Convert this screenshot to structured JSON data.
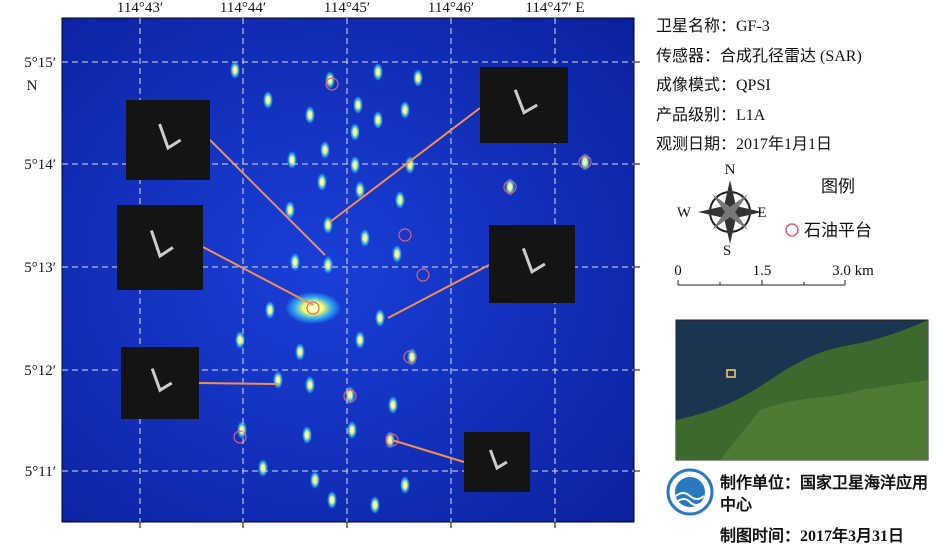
{
  "map": {
    "x_labels": [
      "114°43′",
      "114°44′",
      "114°45′",
      "114°46′",
      "114°47′ E"
    ],
    "y_labels": [
      "5°15′",
      "5°14′",
      "5°13′",
      "5°12′",
      "5°11′"
    ],
    "y_hemisphere": "N"
  },
  "info": [
    "卫星名称：GF-3",
    "传感器：合成孔径雷达 (SAR)",
    "成像模式：QPSI",
    "产品级别：L1A",
    "观测日期：2017年1月1日"
  ],
  "compass": {
    "n": "N",
    "s": "S",
    "e": "E",
    "w": "W"
  },
  "legend": {
    "title": "图例",
    "item": "石油平台"
  },
  "scale": {
    "labels": [
      "0",
      "1.5",
      "3.0 km"
    ]
  },
  "credits": {
    "unit": "制作单位：国家卫星海洋应用中心",
    "date": "制图时间：2017年3月31日"
  }
}
